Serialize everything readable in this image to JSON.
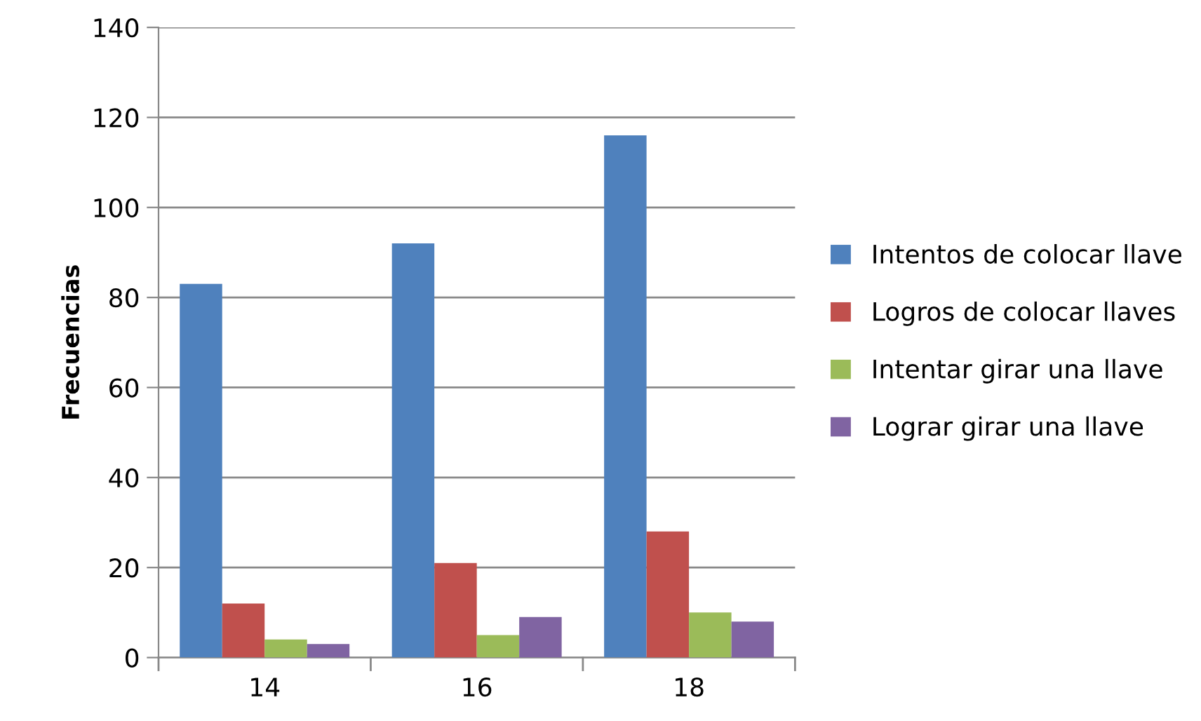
{
  "chart_data": {
    "type": "bar",
    "ylabel": "Frecuencias",
    "categories": [
      "14",
      "16",
      "18"
    ],
    "series": [
      {
        "name": "Intentos de colocar llave",
        "color": "#4f81bd",
        "values": [
          83,
          92,
          116
        ]
      },
      {
        "name": "Logros de colocar llaves",
        "color": "#c0504d",
        "values": [
          12,
          21,
          28
        ]
      },
      {
        "name": "Intentar girar una llave",
        "color": "#9bbb59",
        "values": [
          4,
          5,
          10
        ]
      },
      {
        "name": "Lograr girar una llave",
        "color": "#8064a2",
        "values": [
          3,
          9,
          8
        ]
      }
    ],
    "ylim": [
      0,
      140
    ],
    "yticks": [
      0,
      20,
      40,
      60,
      80,
      100,
      120,
      140
    ],
    "grid": "y",
    "legend": "right"
  }
}
